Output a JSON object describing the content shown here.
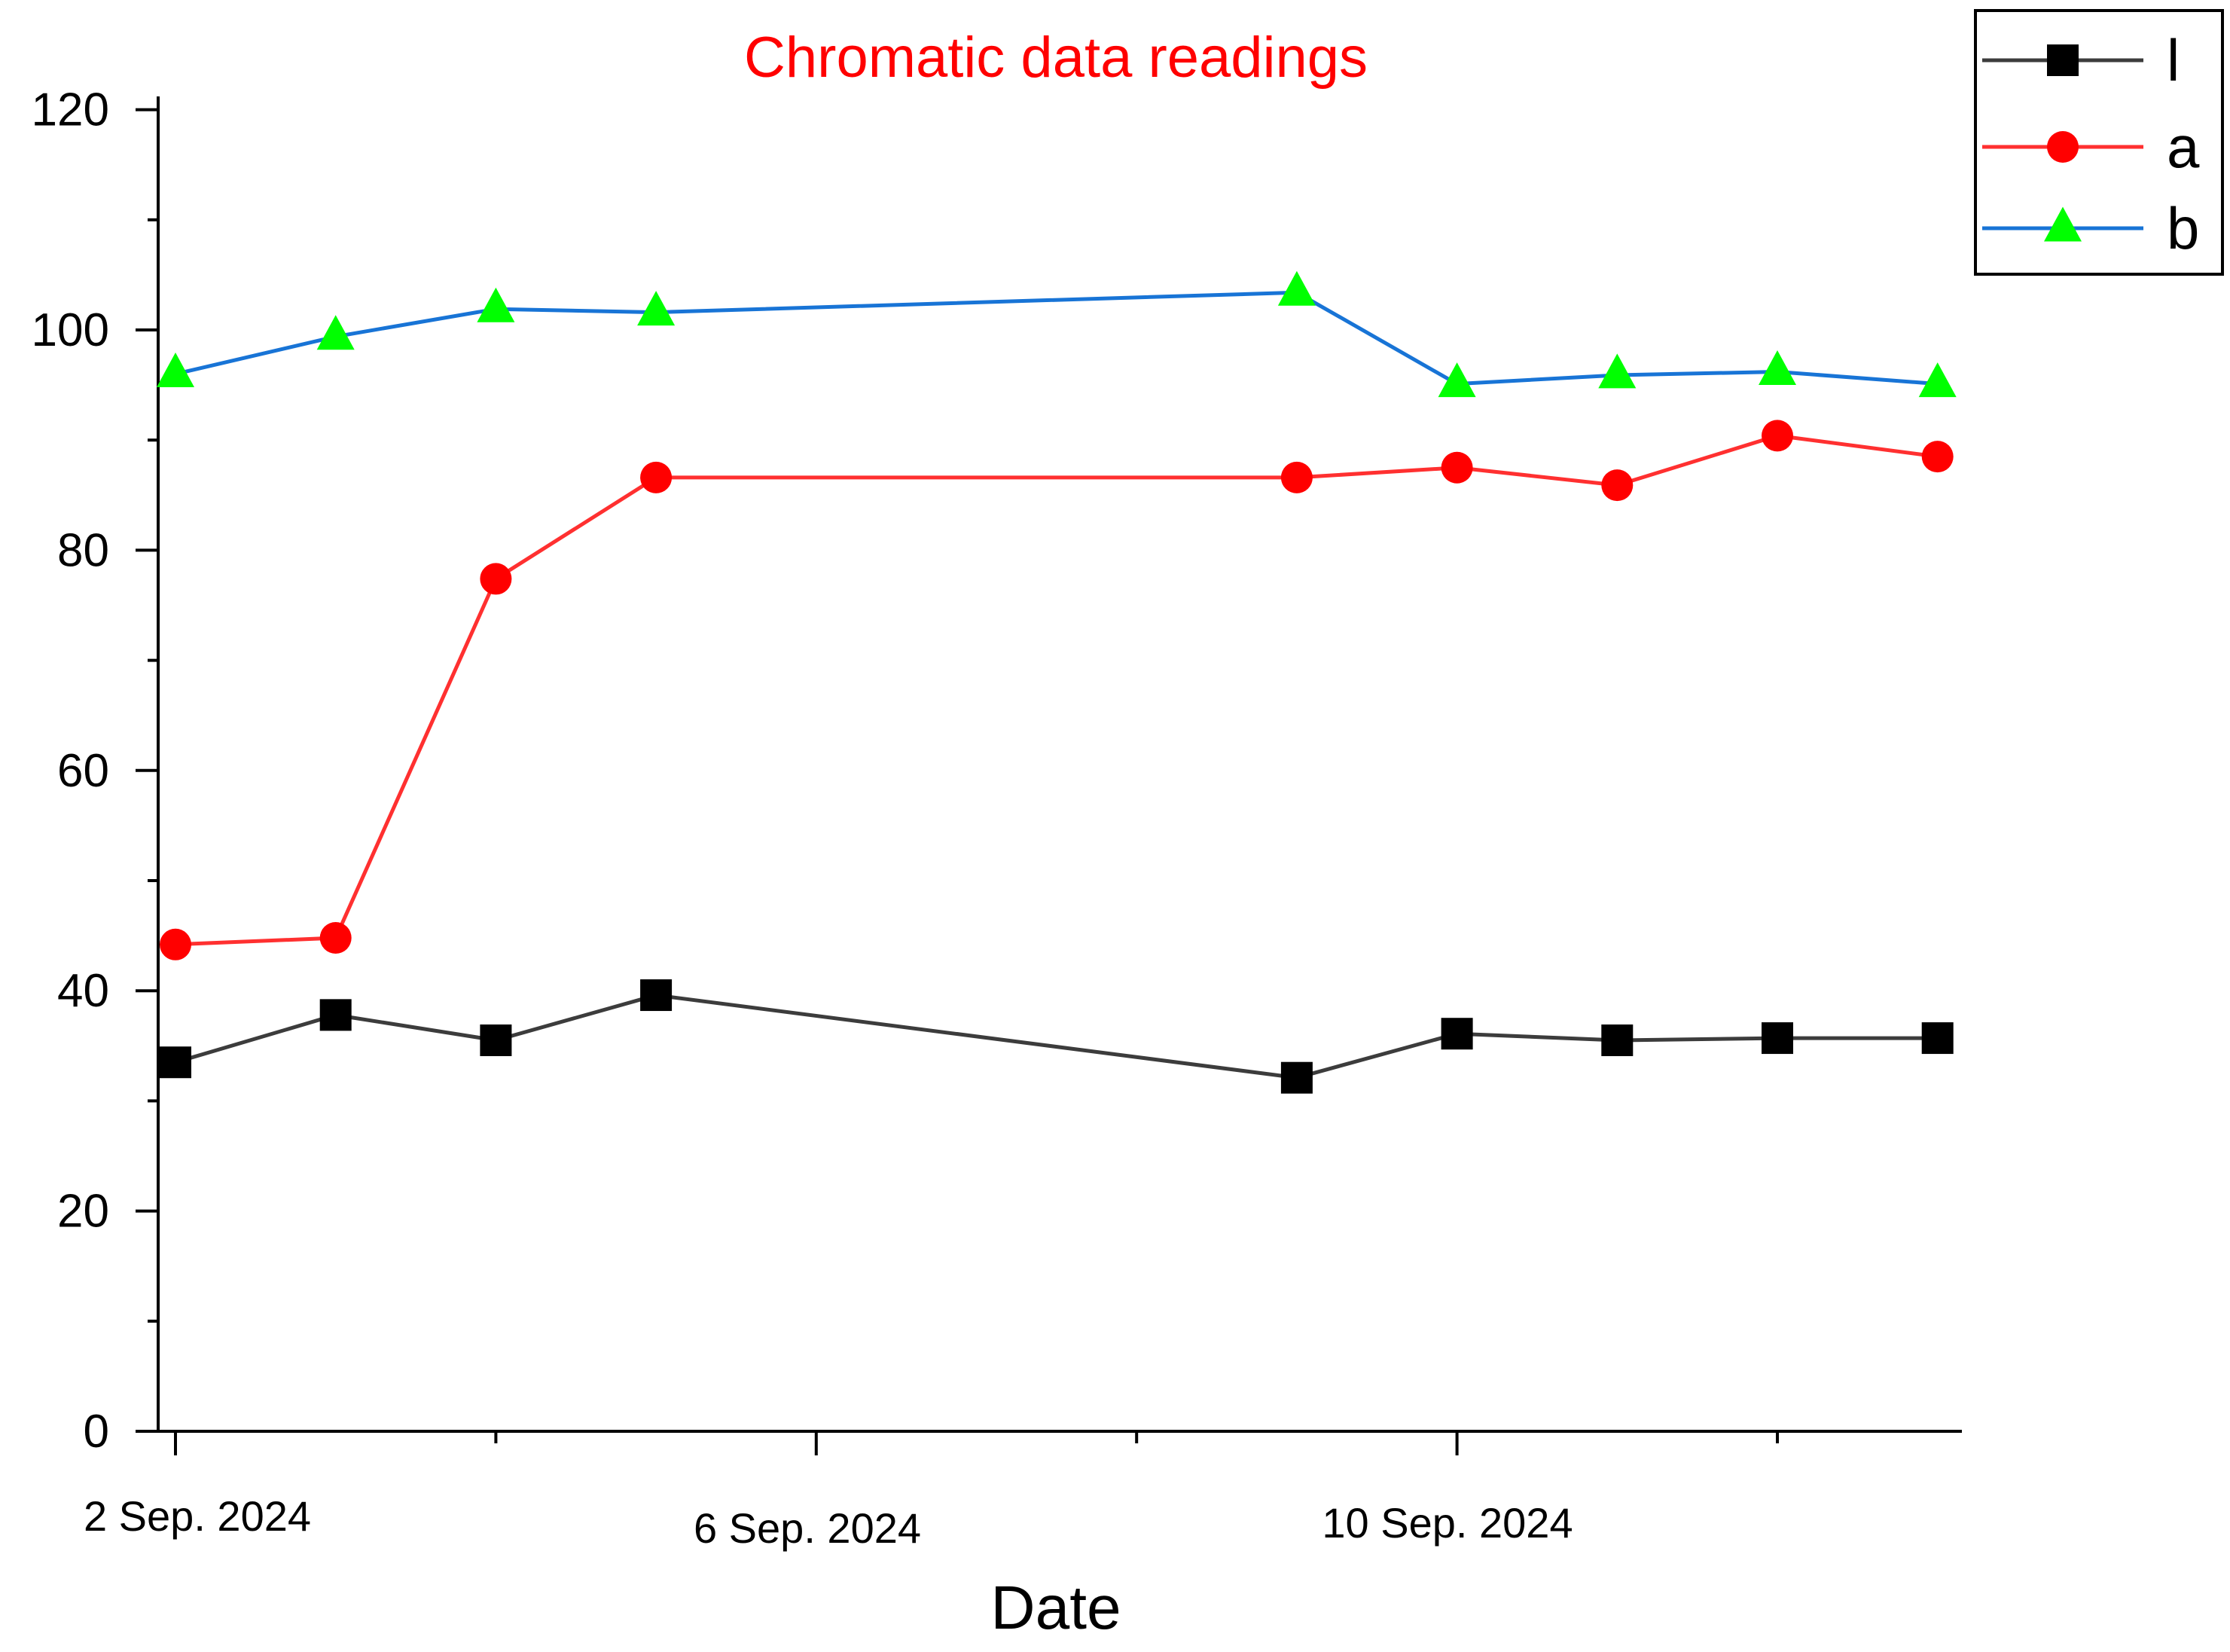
{
  "chart_data": {
    "type": "line",
    "title": "Chromatic data readings",
    "title_color": "#ff0000",
    "xlabel": "Date",
    "ylabel": "",
    "ylim": [
      0,
      120
    ],
    "y_ticks": [
      0,
      20,
      40,
      60,
      80,
      100,
      120
    ],
    "x_unit": "day offset from 2 Sep. 2024",
    "xlim": [
      -0.1,
      11.2
    ],
    "x_major_ticks": [
      0,
      4,
      8
    ],
    "x_minor_ticks": [
      2,
      6,
      10
    ],
    "x_tick_labels": [
      "2 Sep. 2024",
      "6 Sep. 2024",
      "10 Sep. 2024"
    ],
    "x": [
      0,
      1,
      2,
      3,
      7,
      8,
      9,
      10,
      11
    ],
    "grid": false,
    "legend_position": "top-right",
    "series": [
      {
        "name": "l",
        "color": "#3c3c3c",
        "marker": "square",
        "marker_color": "#000000",
        "values": [
          33.5,
          37.8,
          35.5,
          39.6,
          32.1,
          36.1,
          35.5,
          35.7,
          35.7
        ]
      },
      {
        "name": "a",
        "color": "#ff3030",
        "marker": "circle",
        "marker_color": "#ff0000",
        "values": [
          44.2,
          44.8,
          77.4,
          86.6,
          86.6,
          87.5,
          85.9,
          90.4,
          88.5
        ]
      },
      {
        "name": "b",
        "color": "#1874d6",
        "marker": "triangle",
        "marker_color": "#00ff00",
        "values": [
          96.0,
          99.4,
          101.9,
          101.6,
          103.4,
          95.1,
          95.9,
          96.2,
          95.1
        ]
      }
    ]
  }
}
